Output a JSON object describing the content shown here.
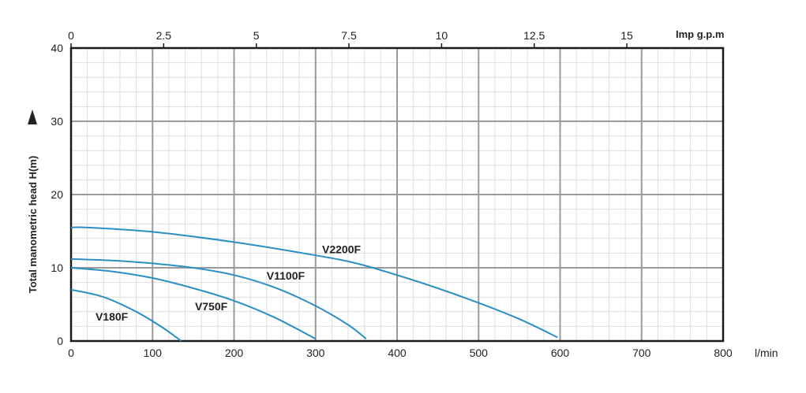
{
  "chart_data": {
    "type": "line",
    "xlabel": "l/min",
    "ylabel": "Total manometric head H(m)",
    "top_axis_label": "Imp g.p.m",
    "xlim": [
      0,
      800
    ],
    "ylim": [
      0,
      40
    ],
    "x_ticks": [
      "0",
      "100",
      "200",
      "300",
      "400",
      "500",
      "600",
      "700",
      "800"
    ],
    "y_ticks": [
      "0",
      "10",
      "20",
      "30",
      "40"
    ],
    "top_ticks": [
      {
        "label": "0",
        "value": 0
      },
      {
        "label": "2.5",
        "value": 2.5
      },
      {
        "label": "5",
        "value": 5
      },
      {
        "label": "7.5",
        "value": 7.5
      },
      {
        "label": "10",
        "value": 10
      },
      {
        "label": "12.5",
        "value": 12.5
      },
      {
        "label": "15",
        "value": 15
      }
    ],
    "lpm_per_top_unit": 45.46,
    "grid": true,
    "colors": {
      "curve": "#2a8fc4",
      "major_grid": "#9a9a9a",
      "minor_grid": "#dedede",
      "frame": "#1a1a1a"
    },
    "series": [
      {
        "name": "V180F",
        "x": [
          0,
          40,
          80,
          110,
          128,
          135
        ],
        "y": [
          7.0,
          6.0,
          4.0,
          2.0,
          0.6,
          0.0
        ]
      },
      {
        "name": "V750F",
        "x": [
          0,
          50,
          100,
          150,
          200,
          250,
          300
        ],
        "y": [
          10.0,
          9.5,
          8.6,
          7.2,
          5.5,
          3.2,
          0.3
        ]
      },
      {
        "name": "V1100F",
        "x": [
          0,
          50,
          100,
          150,
          200,
          250,
          300,
          340,
          362
        ],
        "y": [
          11.2,
          11.0,
          10.6,
          10.0,
          9.0,
          7.3,
          4.8,
          2.2,
          0.3
        ]
      },
      {
        "name": "V2200F",
        "x": [
          0,
          20,
          100,
          200,
          300,
          350,
          400,
          450,
          500,
          550,
          597
        ],
        "y": [
          15.5,
          15.5,
          14.9,
          13.5,
          11.7,
          10.6,
          9.0,
          7.2,
          5.2,
          3.0,
          0.5
        ]
      }
    ],
    "annotations": [
      {
        "series": "V180F",
        "x": 30,
        "y": 2.8
      },
      {
        "series": "V750F",
        "x": 152,
        "y": 4.2
      },
      {
        "series": "V1100F",
        "x": 240,
        "y": 8.4
      },
      {
        "series": "V2200F",
        "x": 308,
        "y": 12.0
      }
    ]
  }
}
